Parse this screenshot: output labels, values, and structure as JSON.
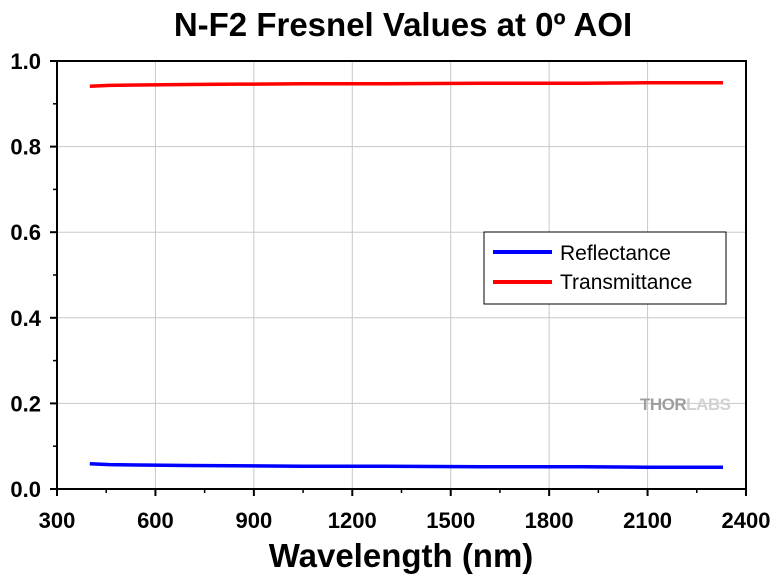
{
  "chart_data": {
    "type": "line",
    "title": "N-F2 Fresnel Values at 0º AOI",
    "xlabel": "Wavelength (nm)",
    "ylabel": "",
    "xlim": [
      300,
      2400
    ],
    "ylim": [
      0,
      1.0
    ],
    "x_ticks": [
      "300",
      "600",
      "900",
      "1200",
      "1500",
      "1800",
      "2100",
      "2400"
    ],
    "y_ticks": [
      "0.0",
      "0.2",
      "0.4",
      "0.6",
      "0.8",
      "1.0"
    ],
    "grid": true,
    "legend_position": "right-middle",
    "series": [
      {
        "name": "Reflectance",
        "color": "#0000ff",
        "x": [
          400,
          460,
          550,
          700,
          900,
          1050,
          1300,
          1600,
          1900,
          2100,
          2330
        ],
        "y": [
          0.059,
          0.057,
          0.056,
          0.055,
          0.054,
          0.053,
          0.053,
          0.052,
          0.052,
          0.051,
          0.051
        ]
      },
      {
        "name": "Transmittance",
        "color": "#ff0000",
        "x": [
          400,
          460,
          550,
          700,
          850,
          900,
          1050,
          1300,
          1600,
          1800,
          1900,
          2100,
          2330
        ],
        "y": [
          0.941,
          0.943,
          0.944,
          0.945,
          0.946,
          0.946,
          0.947,
          0.947,
          0.948,
          0.948,
          0.948,
          0.949,
          0.949
        ]
      }
    ]
  },
  "watermark": {
    "text_part1": "THOR",
    "text_part2": "LABS"
  }
}
